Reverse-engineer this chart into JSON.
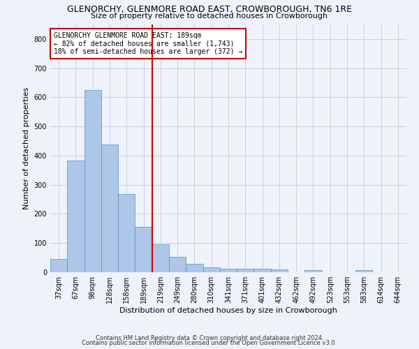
{
  "title_line1": "GLENORCHY, GLENMORE ROAD EAST, CROWBOROUGH, TN6 1RE",
  "title_line2": "Size of property relative to detached houses in Crowborough",
  "xlabel": "Distribution of detached houses by size in Crowborough",
  "ylabel": "Number of detached properties",
  "categories": [
    "37sqm",
    "67sqm",
    "98sqm",
    "128sqm",
    "158sqm",
    "189sqm",
    "219sqm",
    "249sqm",
    "280sqm",
    "310sqm",
    "341sqm",
    "371sqm",
    "401sqm",
    "432sqm",
    "462sqm",
    "492sqm",
    "523sqm",
    "553sqm",
    "583sqm",
    "614sqm",
    "644sqm"
  ],
  "values": [
    45,
    382,
    625,
    438,
    268,
    155,
    95,
    52,
    28,
    17,
    12,
    12,
    12,
    10,
    0,
    8,
    0,
    0,
    8,
    0,
    0
  ],
  "bar_color": "#aec6e8",
  "bar_edge_color": "#5a8fc0",
  "highlight_line_index": 5,
  "highlight_color": "#cc0000",
  "ylim": [
    0,
    850
  ],
  "yticks": [
    0,
    100,
    200,
    300,
    400,
    500,
    600,
    700,
    800
  ],
  "annotation_text": "GLENORCHY GLENMORE ROAD EAST: 189sqm\n← 82% of detached houses are smaller (1,743)\n18% of semi-detached houses are larger (372) →",
  "footnote_line1": "Contains HM Land Registry data © Crown copyright and database right 2024.",
  "footnote_line2": "Contains public sector information licensed under the Open Government Licence v3.0.",
  "background_color": "#eef2fb",
  "grid_color": "#c8cfe0",
  "title1_fontsize": 9,
  "title2_fontsize": 8,
  "ylabel_fontsize": 8,
  "xlabel_fontsize": 8,
  "tick_fontsize": 7,
  "footnote_fontsize": 6
}
